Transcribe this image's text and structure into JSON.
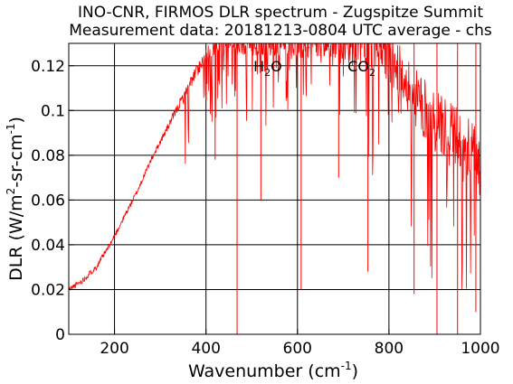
{
  "chart_data": {
    "type": "line",
    "title": "INO-CNR, FIRMOS DLR spectrum - Zugspitze Summit",
    "subtitle": "Measurement data: 20181213-0804 UTC average - chs",
    "xlabel": "Wavenumber (cm",
    "xlabel_sup": "-1",
    "xlabel_end": ")",
    "ylabel": "DLR (W/m",
    "ylabel_sup1": "2",
    "ylabel_mid": "-sr-cm",
    "ylabel_sup2": "-1",
    "ylabel_end": ")",
    "xlim": [
      100,
      1000
    ],
    "ylim": [
      0,
      0.13
    ],
    "x_ticks": [
      200,
      400,
      600,
      800,
      1000
    ],
    "x_tick_labels": [
      "200",
      "400",
      "600",
      "800",
      "1000"
    ],
    "y_ticks": [
      0,
      0.02,
      0.04,
      0.06,
      0.08,
      0.1,
      0.12
    ],
    "y_tick_labels": [
      "0",
      "0.02",
      "0.04",
      "0.06",
      "0.08",
      "0.1",
      "0.12"
    ],
    "grid": true,
    "series": [
      {
        "color": "#ff0000",
        "x": [
          100,
          130,
          160,
          190,
          220,
          250,
          280,
          310,
          340,
          370,
          400,
          430,
          460,
          500,
          540,
          580,
          620,
          660,
          700,
          740,
          780,
          820,
          860,
          900,
          940,
          980,
          1000
        ],
        "values": [
          0.02,
          0.024,
          0.03,
          0.04,
          0.052,
          0.064,
          0.078,
          0.09,
          0.102,
          0.114,
          0.125,
          0.13,
          0.13,
          0.13,
          0.13,
          0.13,
          0.13,
          0.13,
          0.13,
          0.13,
          0.128,
          0.118,
          0.105,
          0.095,
          0.088,
          0.08,
          0.075
        ]
      }
    ],
    "absorption_lines": [
      {
        "x": 468,
        "y": 0.0
      },
      {
        "x": 608,
        "y": 0.02
      },
      {
        "x": 754,
        "y": 0.028
      },
      {
        "x": 855,
        "y": 0.018
      },
      {
        "x": 905,
        "y": 0.0
      },
      {
        "x": 950,
        "y": 0.0
      },
      {
        "x": 990,
        "y": 0.01
      },
      {
        "x": 520,
        "y": 0.06
      },
      {
        "x": 690,
        "y": 0.07
      },
      {
        "x": 420,
        "y": 0.078
      }
    ],
    "annotations": [
      {
        "base": "H",
        "sub": "2",
        "tail": "O",
        "x": 535,
        "y": 0.12
      },
      {
        "base": "CO",
        "sub": "2",
        "tail": "",
        "x": 740,
        "y": 0.12
      }
    ]
  }
}
